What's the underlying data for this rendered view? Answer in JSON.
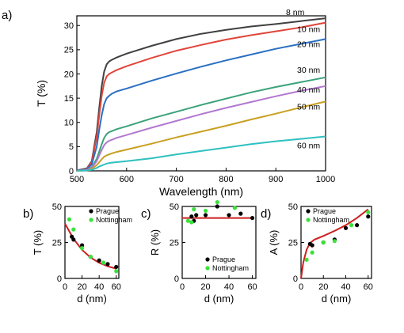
{
  "colors": {
    "axis": "#000000",
    "fit_red": "#cc1f1f",
    "prague": "#000000",
    "nottingham": "#39e239"
  },
  "chart_data": [
    {
      "id": "a",
      "panel_label": "a)",
      "type": "line",
      "xlabel": "Wavelength (nm)",
      "ylabel": "T (%)",
      "xlim": [
        500,
        1000
      ],
      "ylim": [
        0,
        32
      ],
      "xticks": [
        500,
        600,
        700,
        800,
        900,
        1000
      ],
      "yticks": [
        0,
        5,
        10,
        15,
        20,
        25,
        30
      ],
      "grid": false,
      "x": [
        500,
        520,
        530,
        540,
        545,
        550,
        555,
        560,
        565,
        570,
        580,
        600,
        650,
        700,
        750,
        800,
        850,
        900,
        950,
        1000
      ],
      "series": [
        {
          "name": "8 nm",
          "color": "#404040",
          "values": [
            0.1,
            0.5,
            2.0,
            8.0,
            13.0,
            17.5,
            20.5,
            22.0,
            22.6,
            22.9,
            23.4,
            24.2,
            25.8,
            27.2,
            28.3,
            29.1,
            29.8,
            30.3,
            30.9,
            31.5
          ]
        },
        {
          "name": "10 nm",
          "color": "#e0453a",
          "values": [
            0.1,
            0.4,
            1.8,
            7.0,
            11.5,
            15.5,
            18.2,
            19.5,
            20.0,
            20.3,
            20.8,
            21.6,
            23.3,
            24.8,
            26.0,
            27.1,
            28.0,
            28.8,
            29.6,
            30.6
          ]
        },
        {
          "name": "20 nm",
          "color": "#2a6fc4",
          "values": [
            0.1,
            0.3,
            1.3,
            5.0,
            8.5,
            11.5,
            13.8,
            15.0,
            15.5,
            15.9,
            16.4,
            17.0,
            18.6,
            20.1,
            21.5,
            22.8,
            24.0,
            25.2,
            26.2,
            27.2
          ]
        },
        {
          "name": "30 nm",
          "color": "#3aa27a",
          "values": [
            0.0,
            0.2,
            0.7,
            2.5,
            4.0,
            5.5,
            6.8,
            7.6,
            8.0,
            8.2,
            8.6,
            9.2,
            10.8,
            12.2,
            13.6,
            14.9,
            16.2,
            17.3,
            18.3,
            19.3
          ]
        },
        {
          "name": "40 nm",
          "color": "#b278d0",
          "values": [
            0.0,
            0.2,
            0.6,
            2.0,
            3.2,
            4.3,
            5.3,
            5.9,
            6.2,
            6.4,
            6.8,
            7.4,
            8.9,
            10.3,
            11.7,
            13.0,
            14.2,
            15.4,
            16.5,
            17.5
          ]
        },
        {
          "name": "50 nm",
          "color": "#c8a020",
          "values": [
            0.0,
            0.1,
            0.4,
            1.2,
            1.8,
            2.4,
            2.9,
            3.2,
            3.4,
            3.6,
            3.9,
            4.4,
            5.6,
            6.9,
            8.1,
            9.3,
            10.6,
            11.8,
            13.1,
            14.3
          ]
        },
        {
          "name": "60 nm",
          "color": "#2fc0c0",
          "values": [
            0.0,
            0.1,
            0.2,
            0.6,
            0.9,
            1.1,
            1.3,
            1.5,
            1.6,
            1.7,
            1.8,
            2.0,
            2.6,
            3.4,
            4.1,
            4.8,
            5.5,
            6.1,
            6.6,
            7.1
          ]
        }
      ]
    },
    {
      "id": "b",
      "panel_label": "b)",
      "type": "scatter",
      "xlabel": "d (nm)",
      "ylabel": "T (%)",
      "xlim": [
        0,
        63
      ],
      "ylim": [
        0,
        50
      ],
      "xticks": [
        0,
        20,
        40,
        60
      ],
      "yticks": [
        0,
        25,
        50
      ],
      "legend": "top-right",
      "fit": {
        "color": "#cc1f1f",
        "x": [
          0,
          10,
          20,
          30,
          40,
          50,
          60
        ],
        "y": [
          38,
          27.5,
          19.8,
          14.5,
          10.9,
          8.4,
          6.8
        ]
      },
      "series": [
        {
          "name": "Prague",
          "color": "#000000",
          "x": [
            8,
            10,
            20,
            30,
            40,
            50,
            60
          ],
          "y": [
            29,
            27,
            23,
            15,
            12.5,
            10,
            8
          ]
        },
        {
          "name": "Nottingham",
          "color": "#39e239",
          "x": [
            5,
            10,
            20,
            30,
            45,
            60
          ],
          "y": [
            41,
            34,
            21,
            15,
            11,
            5
          ]
        }
      ]
    },
    {
      "id": "c",
      "panel_label": "c)",
      "type": "scatter",
      "xlabel": "d (nm)",
      "ylabel": "R (%)",
      "xlim": [
        0,
        63
      ],
      "ylim": [
        0,
        50
      ],
      "xticks": [
        0,
        20,
        40,
        60
      ],
      "yticks": [
        0,
        25,
        50
      ],
      "legend": "bottom-right",
      "fit": {
        "color": "#cc1f1f",
        "x": [
          0,
          60
        ],
        "y": [
          42,
          42
        ]
      },
      "series": [
        {
          "name": "Prague",
          "color": "#000000",
          "x": [
            8,
            10,
            12,
            20,
            30,
            40,
            50,
            60
          ],
          "y": [
            43,
            40,
            44,
            44,
            50,
            44,
            45,
            42
          ]
        },
        {
          "name": "Nottingham",
          "color": "#39e239",
          "x": [
            5,
            8,
            10,
            20,
            30,
            45
          ],
          "y": [
            40,
            39,
            48,
            47,
            53,
            49
          ]
        }
      ]
    },
    {
      "id": "d",
      "panel_label": "d)",
      "type": "scatter",
      "xlabel": "d (nm)",
      "ylabel": "A (%)",
      "xlim": [
        0,
        63
      ],
      "ylim": [
        0,
        50
      ],
      "xticks": [
        0,
        20,
        40,
        60
      ],
      "yticks": [
        0,
        25,
        50
      ],
      "legend": "top-left",
      "fit": {
        "color": "#cc1f1f",
        "x": [
          0,
          2,
          5,
          8,
          12,
          20,
          30,
          40,
          50,
          60
        ],
        "y": [
          0,
          11,
          20,
          24.5,
          27,
          29.5,
          33,
          37,
          42,
          48
        ]
      },
      "series": [
        {
          "name": "Prague",
          "color": "#000000",
          "x": [
            8,
            10,
            20,
            30,
            40,
            50,
            60
          ],
          "y": [
            24,
            23,
            25,
            27,
            35,
            37,
            43
          ]
        },
        {
          "name": "Nottingham",
          "color": "#39e239",
          "x": [
            5,
            10,
            20,
            30,
            45,
            60
          ],
          "y": [
            13,
            18,
            25,
            26,
            37,
            46
          ]
        }
      ]
    }
  ]
}
